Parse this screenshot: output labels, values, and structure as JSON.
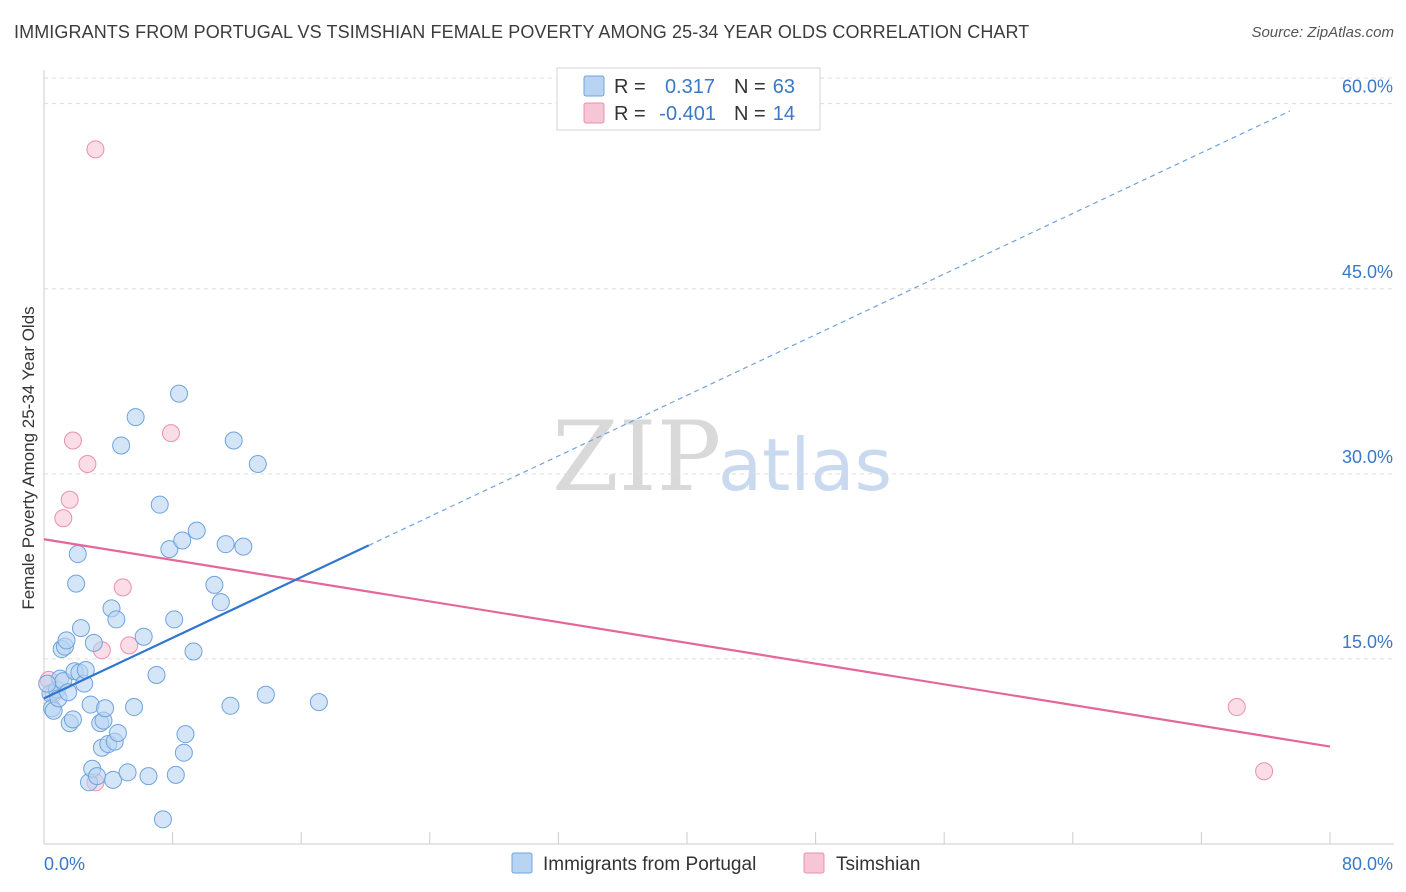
{
  "title": "IMMIGRANTS FROM PORTUGAL VS TSIMSHIAN FEMALE POVERTY AMONG 25-34 YEAR OLDS CORRELATION CHART",
  "source": "Source: ZipAtlas.com",
  "watermark": {
    "zip": "ZIP",
    "atlas": "atlas"
  },
  "colors": {
    "blue_fill": "#b8d4f2",
    "blue_stroke": "#6fa3dd",
    "blue_line": "#2f76cf",
    "pink_fill": "#f7c6d6",
    "pink_stroke": "#ec8fb0",
    "pink_line": "#e4679a",
    "grid": "#dddddd",
    "axis_text": "#3a78c8"
  },
  "legend": {
    "rows": [
      {
        "r_label": "R =",
        "r_value": "0.317",
        "n_label": "N =",
        "n_value": "63"
      },
      {
        "r_label": "R =",
        "r_value": "-0.401",
        "n_label": "N =",
        "n_value": "14"
      }
    ]
  },
  "chart_data": {
    "type": "scatter",
    "title": "IMMIGRANTS FROM PORTUGAL VS TSIMSHIAN FEMALE POVERTY AMONG 25-34 YEAR OLDS CORRELATION CHART",
    "xlabel": "",
    "ylabel": "Female Poverty Among 25-34 Year Olds",
    "xlim": [
      0,
      80
    ],
    "ylim": [
      0,
      62
    ],
    "x_tick_labels": [
      "0.0%",
      "80.0%"
    ],
    "y_tick_labels": [
      "15.0%",
      "30.0%",
      "45.0%",
      "60.0%"
    ],
    "y_ticks": [
      15,
      30,
      45,
      60
    ],
    "grid": true,
    "legend_position": "top-center",
    "series": [
      {
        "name": "Immigrants from Portugal",
        "color": "#6fa3dd",
        "trend": {
          "x0": 0,
          "y0": 11.8,
          "x1": 20.2,
          "y1": 24.2,
          "dashed_to_x": 77.5,
          "dashed_to_y": 59.4
        },
        "points": [
          [
            0.4,
            12.2
          ],
          [
            0.5,
            11.0
          ],
          [
            0.6,
            10.8
          ],
          [
            0.8,
            12.5
          ],
          [
            0.9,
            11.8
          ],
          [
            1.0,
            13.4
          ],
          [
            1.1,
            15.8
          ],
          [
            1.2,
            13.2
          ],
          [
            1.3,
            16.0
          ],
          [
            1.4,
            16.5
          ],
          [
            1.5,
            12.3
          ],
          [
            1.6,
            9.8
          ],
          [
            1.8,
            10.1
          ],
          [
            1.9,
            14.0
          ],
          [
            2.0,
            21.1
          ],
          [
            2.1,
            23.5
          ],
          [
            2.2,
            13.9
          ],
          [
            2.3,
            17.5
          ],
          [
            2.5,
            13.0
          ],
          [
            2.6,
            14.1
          ],
          [
            2.8,
            5.0
          ],
          [
            2.9,
            11.3
          ],
          [
            3.0,
            6.1
          ],
          [
            3.1,
            16.3
          ],
          [
            3.3,
            5.5
          ],
          [
            3.5,
            9.8
          ],
          [
            3.6,
            7.8
          ],
          [
            3.7,
            10.0
          ],
          [
            3.8,
            11.0
          ],
          [
            4.0,
            8.1
          ],
          [
            4.2,
            19.1
          ],
          [
            4.3,
            5.2
          ],
          [
            4.4,
            8.3
          ],
          [
            4.5,
            18.2
          ],
          [
            4.6,
            9.0
          ],
          [
            4.8,
            32.3
          ],
          [
            5.2,
            5.8
          ],
          [
            5.6,
            11.1
          ],
          [
            5.7,
            34.6
          ],
          [
            6.2,
            16.8
          ],
          [
            6.5,
            5.5
          ],
          [
            7.0,
            13.7
          ],
          [
            7.2,
            27.5
          ],
          [
            7.4,
            2.0
          ],
          [
            7.8,
            23.9
          ],
          [
            8.1,
            18.2
          ],
          [
            8.2,
            5.6
          ],
          [
            8.4,
            36.5
          ],
          [
            8.6,
            24.6
          ],
          [
            8.7,
            7.4
          ],
          [
            8.8,
            8.9
          ],
          [
            9.3,
            15.6
          ],
          [
            9.5,
            25.4
          ],
          [
            10.6,
            21.0
          ],
          [
            11.0,
            19.6
          ],
          [
            11.3,
            24.3
          ],
          [
            11.6,
            11.2
          ],
          [
            11.8,
            32.7
          ],
          [
            12.4,
            24.1
          ],
          [
            13.3,
            30.8
          ],
          [
            13.8,
            12.1
          ],
          [
            17.1,
            11.5
          ],
          [
            0.2,
            13.0
          ]
        ]
      },
      {
        "name": "Tsimshian",
        "color": "#ec8fb0",
        "trend": {
          "x0": 0,
          "y0": 24.7,
          "x1": 80,
          "y1": 7.9
        },
        "points": [
          [
            0.3,
            13.3
          ],
          [
            0.6,
            12.2
          ],
          [
            1.2,
            26.4
          ],
          [
            1.6,
            27.9
          ],
          [
            1.8,
            32.7
          ],
          [
            2.7,
            30.8
          ],
          [
            3.2,
            5.0
          ],
          [
            3.2,
            56.3
          ],
          [
            3.6,
            15.7
          ],
          [
            4.9,
            20.8
          ],
          [
            5.3,
            16.1
          ],
          [
            7.9,
            33.3
          ],
          [
            74.2,
            11.1
          ],
          [
            75.9,
            5.9
          ]
        ]
      }
    ]
  }
}
